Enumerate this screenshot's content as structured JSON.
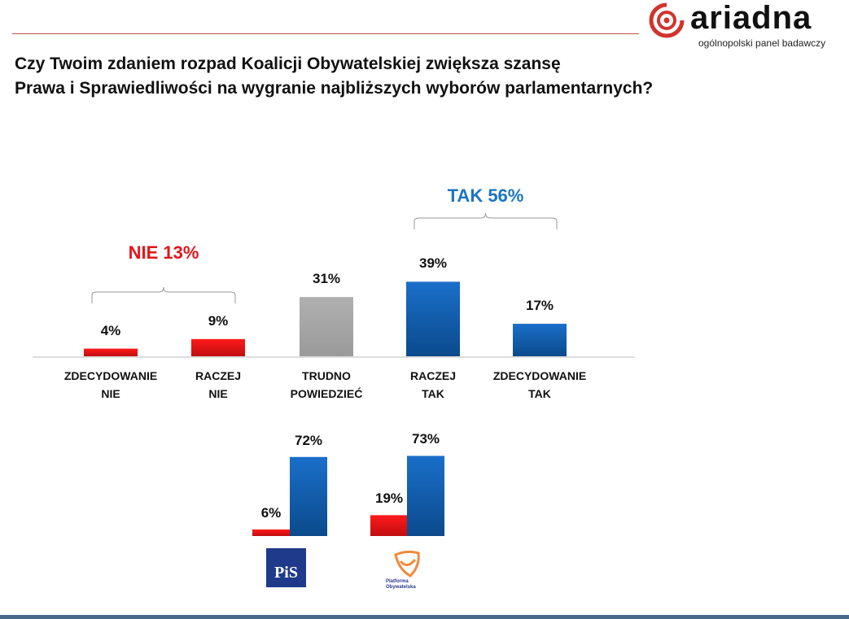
{
  "logo": {
    "name": "ariadna",
    "tagline": "ogólnopolski panel badawczy"
  },
  "title_lines": [
    "Czy Twoim zdaniem rozpad Koalicji Obywatelskiej zwiększa szansę",
    "Prawa i Sprawiedliwości na wygranie najbliższych wyborów parlamentarnych?"
  ],
  "colors": {
    "red": "#e3161b",
    "blue": "#1262b8",
    "gray": "#a6a6a6",
    "tak": "#1a75c2"
  },
  "chart_data": [
    {
      "type": "bar",
      "title": "",
      "categories": [
        [
          "ZDECYDOWANIE",
          "NIE"
        ],
        [
          "RACZEJ",
          "NIE"
        ],
        [
          "TRUDNO",
          "POWIEDZIEĆ"
        ],
        [
          "RACZEJ",
          "TAK"
        ],
        [
          "ZDECYDOWANIE",
          "TAK"
        ]
      ],
      "values": [
        4,
        9,
        31,
        39,
        17
      ],
      "labels": [
        "4%",
        "9%",
        "31%",
        "39%",
        "17%"
      ],
      "bar_colors": [
        "red",
        "red",
        "gray",
        "blue",
        "blue"
      ],
      "groups": [
        {
          "label": "NIE 13%",
          "color": "red",
          "from": 0,
          "to": 1
        },
        {
          "label": "TAK 56%",
          "color": "tak",
          "from": 3,
          "to": 4
        }
      ],
      "ylim": [
        0,
        40
      ]
    },
    {
      "type": "bar",
      "categories": [
        "PiS",
        "Platforma Obywatelska"
      ],
      "series": [
        {
          "name": "NIE",
          "color": "red",
          "values": [
            6,
            19
          ],
          "labels": [
            "6%",
            "19%"
          ]
        },
        {
          "name": "TAK",
          "color": "blue",
          "values": [
            72,
            73
          ],
          "labels": [
            "72%",
            "73%"
          ]
        }
      ],
      "category_logos": {
        "pis": "PiS",
        "po": [
          "Platforma",
          "Obywatelska"
        ]
      },
      "ylim": [
        0,
        75
      ]
    }
  ]
}
